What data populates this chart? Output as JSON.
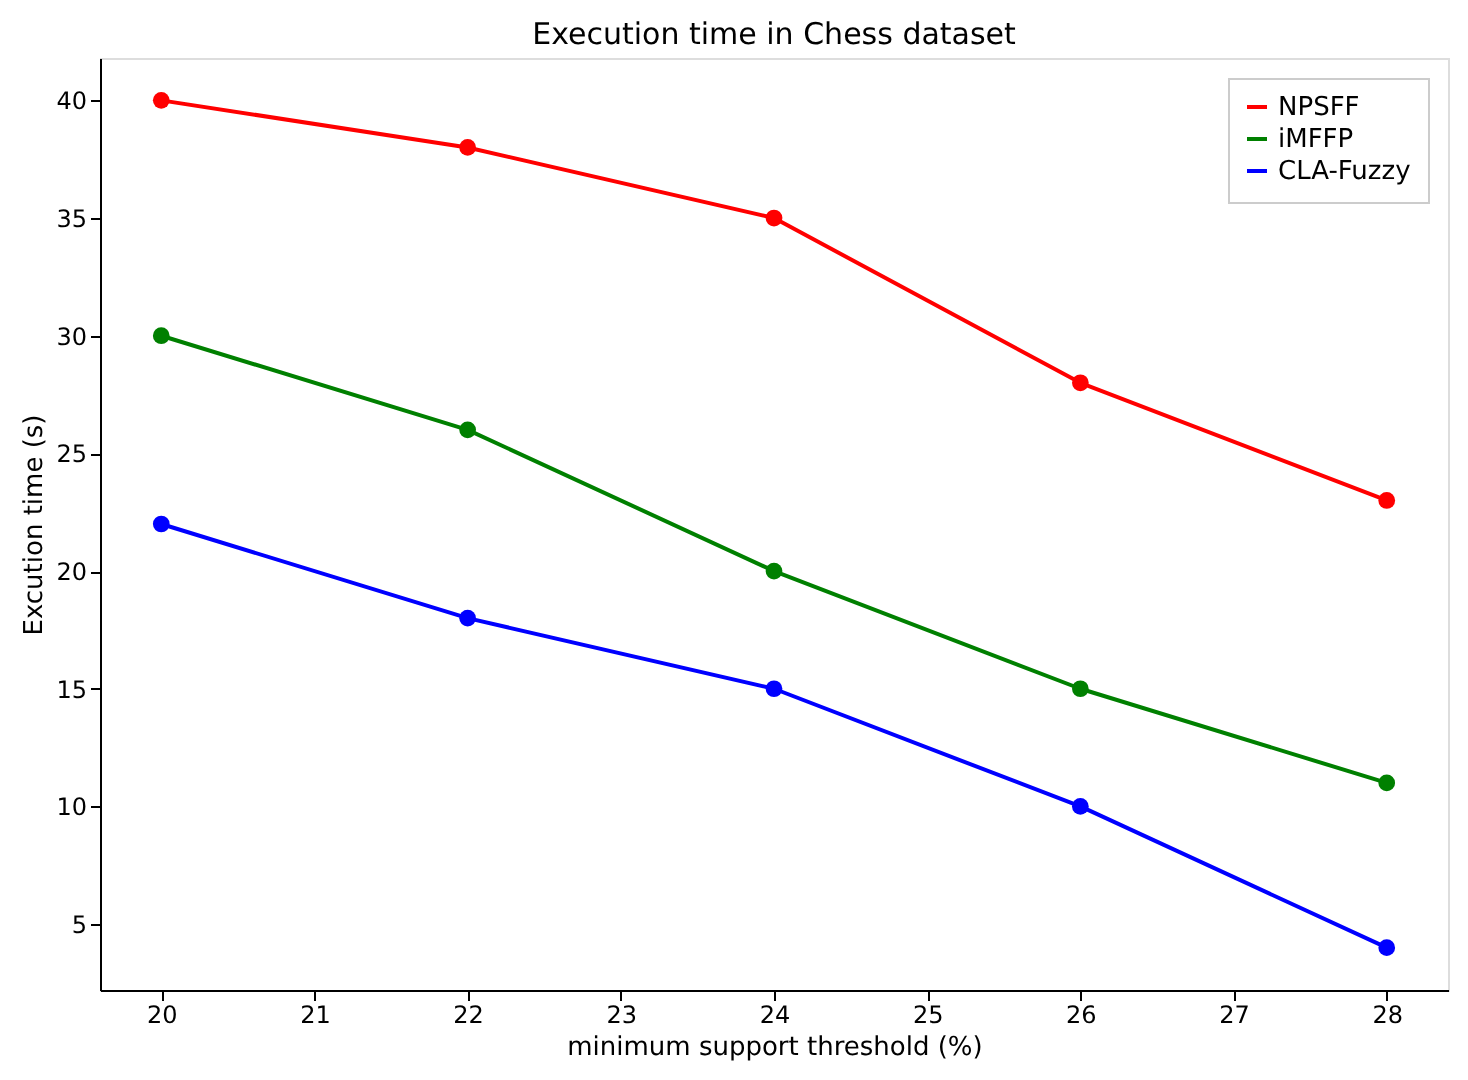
{
  "chart_data": {
    "type": "line",
    "title": "Execution time in Chess dataset",
    "xlabel": "minimum support threshold (%)",
    "ylabel": "Excution time (s)",
    "x": [
      20,
      22,
      24,
      26,
      28
    ],
    "series": [
      {
        "name": "NPSFF",
        "color": "#ff0000",
        "values": [
          40,
          38,
          35,
          28,
          23
        ]
      },
      {
        "name": "iMFFP",
        "color": "#008000",
        "values": [
          30,
          26,
          20,
          15,
          11
        ]
      },
      {
        "name": "CLA-Fuzzy",
        "color": "#0000ff",
        "values": [
          22,
          18,
          15,
          10,
          4
        ]
      }
    ],
    "xlim": [
      19.6,
      28.4
    ],
    "ylim": [
      2.2,
      41.8
    ],
    "xticks": [
      20,
      21,
      22,
      23,
      24,
      25,
      26,
      27,
      28
    ],
    "yticks": [
      5,
      10,
      15,
      20,
      25,
      30,
      35,
      40
    ],
    "grid": false,
    "legend": "top right",
    "marker": "circle",
    "line_style": "solid"
  }
}
